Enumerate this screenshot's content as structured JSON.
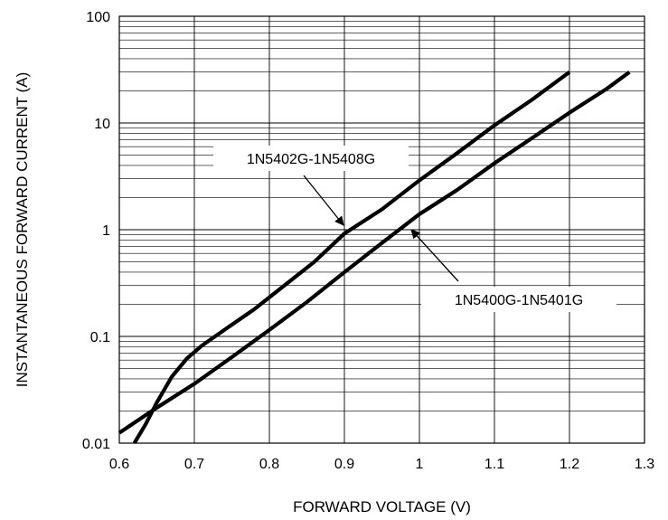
{
  "chart_data": {
    "type": "line",
    "title": "",
    "xlabel": "FORWARD VOLTAGE (V)",
    "ylabel": "INSTANTANEOUS FORWARD CURRENT (A)",
    "xlim": [
      0.6,
      1.3
    ],
    "ylim": [
      0.01,
      100
    ],
    "yscale": "log",
    "grid": true,
    "x_ticks": [
      "0.6",
      "0.7",
      "0.8",
      "0.9",
      "1",
      "1.1",
      "1.2",
      "1.3"
    ],
    "y_ticks": [
      "0.01",
      "0.1",
      "1",
      "10",
      "100"
    ],
    "series": [
      {
        "name": "1N5402G-1N5408G",
        "x": [
          0.62,
          0.635,
          0.65,
          0.67,
          0.69,
          0.71,
          0.74,
          0.78,
          0.82,
          0.86,
          0.9,
          0.95,
          1.0,
          1.05,
          1.1,
          1.15,
          1.2
        ],
        "y": [
          0.01,
          0.015,
          0.024,
          0.042,
          0.062,
          0.082,
          0.115,
          0.18,
          0.3,
          0.5,
          0.92,
          1.55,
          2.9,
          5.2,
          9.5,
          16.5,
          30
        ]
      },
      {
        "name": "1N5400G-1N5401G",
        "x": [
          0.6,
          0.65,
          0.7,
          0.75,
          0.8,
          0.85,
          0.9,
          0.95,
          1.0,
          1.05,
          1.1,
          1.15,
          1.2,
          1.25,
          1.28
        ],
        "y": [
          0.0125,
          0.0215,
          0.036,
          0.064,
          0.115,
          0.21,
          0.4,
          0.75,
          1.4,
          2.35,
          4.2,
          7.2,
          12.5,
          21,
          30
        ]
      }
    ],
    "annotations": [
      {
        "text": "1N5402G-1N5408G",
        "points_to": {
          "x": 0.9,
          "y": 0.95
        }
      },
      {
        "text": "1N5400G-1N5401G",
        "points_to": {
          "x": 0.96,
          "y": 0.85
        }
      }
    ]
  }
}
